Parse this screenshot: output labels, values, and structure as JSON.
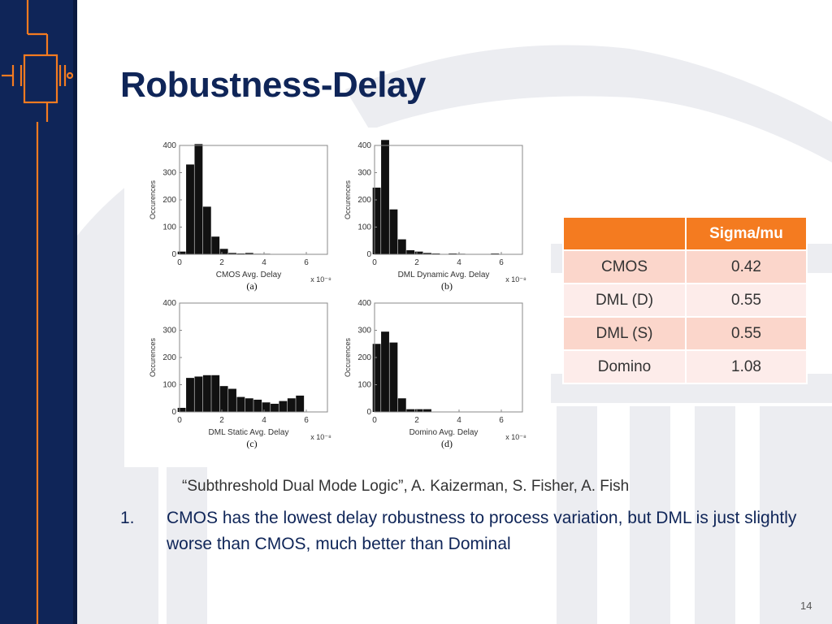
{
  "slide": {
    "title": "Robustness-Delay",
    "citation": "“Subthreshold Dual Mode Logic”, A. Kaizerman, S. Fisher, A. Fish",
    "point_number": "1.",
    "point_text": "CMOS has the lowest delay robustness to process variation, but DML is just slightly worse than CMOS, much better than Dominal",
    "page_number": "14"
  },
  "table": {
    "header": [
      "",
      "Sigma/mu"
    ],
    "rows": [
      [
        "CMOS",
        "0.42"
      ],
      [
        "DML (D)",
        "0.55"
      ],
      [
        "DML (S)",
        "0.55"
      ],
      [
        "Domino",
        "1.08"
      ]
    ]
  },
  "colors": {
    "navy": "#0f2558",
    "orange": "#f47b20",
    "row_odd": "#fbd6cb",
    "row_even": "#fdecea"
  },
  "chart_data": [
    {
      "type": "bar",
      "panel": "(a)",
      "xlabel": "CMOS Avg. Delay",
      "x_exponent": "x 10⁻⁸",
      "ylabel": "Occurences",
      "xticks": [
        "0",
        "2",
        "4",
        "6"
      ],
      "yticks": [
        "0",
        "100",
        "200",
        "300",
        "400"
      ],
      "xlim": [
        0,
        7
      ],
      "ylim": [
        0,
        400
      ],
      "x": [
        0.1,
        0.5,
        0.9,
        1.3,
        1.7,
        2.1,
        2.5,
        2.9,
        3.3,
        3.7,
        4.1,
        4.5,
        4.9,
        5.3,
        5.7,
        6.1,
        6.5
      ],
      "values": [
        10,
        330,
        405,
        175,
        65,
        20,
        5,
        3,
        5,
        2,
        2,
        0,
        0,
        0,
        0,
        0,
        0
      ]
    },
    {
      "type": "bar",
      "panel": "(b)",
      "xlabel": "DML Dynamic Avg. Delay",
      "x_exponent": "x 10⁻⁸",
      "ylabel": "Occurences",
      "xticks": [
        "0",
        "2",
        "4",
        "6"
      ],
      "yticks": [
        "0",
        "100",
        "200",
        "300",
        "400"
      ],
      "xlim": [
        0,
        7
      ],
      "ylim": [
        0,
        400
      ],
      "x": [
        0.1,
        0.5,
        0.9,
        1.3,
        1.7,
        2.1,
        2.5,
        2.9,
        3.3,
        3.7,
        4.1,
        4.5,
        4.9,
        5.3,
        5.7,
        6.1,
        6.5
      ],
      "values": [
        245,
        420,
        165,
        55,
        15,
        10,
        5,
        3,
        0,
        3,
        2,
        0,
        0,
        0,
        3,
        0,
        0
      ]
    },
    {
      "type": "bar",
      "panel": "(c)",
      "xlabel": "DML Static Avg. Delay",
      "x_exponent": "x 10⁻⁸",
      "ylabel": "Occurences",
      "xticks": [
        "0",
        "2",
        "4",
        "6"
      ],
      "yticks": [
        "0",
        "100",
        "200",
        "300",
        "400"
      ],
      "xlim": [
        0,
        7
      ],
      "ylim": [
        0,
        400
      ],
      "x": [
        0.1,
        0.5,
        0.9,
        1.3,
        1.7,
        2.1,
        2.5,
        2.9,
        3.3,
        3.7,
        4.1,
        4.5,
        4.9,
        5.3,
        5.7
      ],
      "values": [
        15,
        125,
        130,
        135,
        135,
        95,
        85,
        55,
        50,
        45,
        35,
        30,
        40,
        50,
        60
      ]
    },
    {
      "type": "bar",
      "panel": "(d)",
      "xlabel": "Domino Avg. Delay",
      "x_exponent": "x 10⁻⁸",
      "ylabel": "Occurences",
      "xticks": [
        "0",
        "2",
        "4",
        "6"
      ],
      "yticks": [
        "0",
        "100",
        "200",
        "300",
        "400"
      ],
      "xlim": [
        0,
        7
      ],
      "ylim": [
        0,
        400
      ],
      "x": [
        0.1,
        0.5,
        0.9,
        1.3,
        1.7,
        2.1,
        2.5,
        2.9,
        3.3,
        3.7
      ],
      "values": [
        250,
        295,
        255,
        50,
        10,
        10,
        10,
        0,
        0,
        0
      ]
    }
  ]
}
